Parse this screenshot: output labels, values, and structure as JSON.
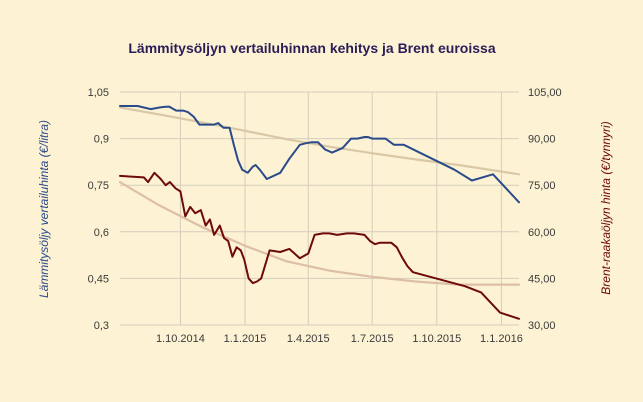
{
  "chart_data": {
    "type": "line",
    "title": "Lämmitysöljyn vertailuhinnan kehitys ja Brent euroissa",
    "ylabel_left": "Lämmitysöljy vertailuhinta (€/litra)",
    "ylabel_right": "Brent-raakaöljyn hinta (€/tynnyri)",
    "ylim_left": [
      0.3,
      1.05
    ],
    "ylim_right": [
      30,
      105
    ],
    "yticks_left": [
      "1,05",
      "0,9",
      "0,75",
      "0,6",
      "0,45",
      "0,3"
    ],
    "yticks_right": [
      "105,00",
      "90,00",
      "75,00",
      "60,00",
      "45,00",
      "30,00"
    ],
    "xticks": [
      {
        "label": "1.10.2014",
        "date": "2014-10-01"
      },
      {
        "label": "1.1.2015",
        "date": "2015-01-01"
      },
      {
        "label": "1.4.2015",
        "date": "2015-04-01"
      },
      {
        "label": "1.7.2015",
        "date": "2015-07-01"
      },
      {
        "label": "1.10.2015",
        "date": "2015-10-01"
      },
      {
        "label": "1.1.2016",
        "date": "2016-01-01"
      }
    ],
    "xlim": [
      "2014-07-07",
      "2016-01-26"
    ],
    "grid": true,
    "legend": "none",
    "series": [
      {
        "axis": "left",
        "color": "#2a4a8a",
        "x": [
          "2014-07-07",
          "2014-08-01",
          "2014-08-10",
          "2014-08-20",
          "2014-09-01",
          "2014-09-08",
          "2014-09-15",
          "2014-09-25",
          "2014-10-05",
          "2014-10-12",
          "2014-10-20",
          "2014-10-28",
          "2014-11-05",
          "2014-11-12",
          "2014-11-18",
          "2014-11-24",
          "2014-12-01",
          "2014-12-05",
          "2014-12-10",
          "2014-12-16",
          "2014-12-22",
          "2014-12-28",
          "2015-01-05",
          "2015-01-12",
          "2015-01-16",
          "2015-01-22",
          "2015-02-01",
          "2015-02-20",
          "2015-03-05",
          "2015-03-20",
          "2015-03-28",
          "2015-04-05",
          "2015-04-15",
          "2015-04-25",
          "2015-05-05",
          "2015-05-20",
          "2015-06-01",
          "2015-06-10",
          "2015-06-20",
          "2015-06-25",
          "2015-07-01",
          "2015-07-10",
          "2015-07-20",
          "2015-08-01",
          "2015-08-10",
          "2015-08-15",
          "2015-10-26",
          "2015-11-20",
          "2015-12-20",
          "2016-01-26"
        ],
        "values": [
          1.005,
          1.005,
          1.0,
          0.995,
          1.0,
          1.002,
          1.003,
          0.99,
          0.99,
          0.985,
          0.97,
          0.945,
          0.945,
          0.945,
          0.945,
          0.95,
          0.935,
          0.935,
          0.935,
          0.88,
          0.83,
          0.8,
          0.79,
          0.81,
          0.815,
          0.8,
          0.77,
          0.79,
          0.835,
          0.88,
          0.885,
          0.888,
          0.888,
          0.865,
          0.855,
          0.87,
          0.9,
          0.9,
          0.905,
          0.905,
          0.9,
          0.9,
          0.9,
          0.88,
          0.88,
          0.88,
          0.8,
          0.765,
          0.785,
          0.695
        ]
      },
      {
        "axis": "right",
        "color": "#6e0a0a",
        "x": [
          "2014-07-07",
          "2014-08-10",
          "2014-08-16",
          "2014-08-25",
          "2014-09-03",
          "2014-09-10",
          "2014-09-16",
          "2014-09-24",
          "2014-10-01",
          "2014-10-08",
          "2014-10-15",
          "2014-10-22",
          "2014-10-30",
          "2014-11-06",
          "2014-11-12",
          "2014-11-18",
          "2014-11-26",
          "2014-12-02",
          "2014-12-08",
          "2014-12-14",
          "2014-12-20",
          "2014-12-26",
          "2014-12-31",
          "2015-01-06",
          "2015-01-12",
          "2015-01-18",
          "2015-01-24",
          "2015-01-28",
          "2015-02-05",
          "2015-02-20",
          "2015-03-05",
          "2015-03-20",
          "2015-04-01",
          "2015-04-10",
          "2015-04-22",
          "2015-05-01",
          "2015-05-12",
          "2015-05-26",
          "2015-06-05",
          "2015-06-20",
          "2015-06-28",
          "2015-07-05",
          "2015-07-12",
          "2015-07-20",
          "2015-07-28",
          "2015-08-05",
          "2015-08-12",
          "2015-08-20",
          "2015-08-28",
          "2015-11-10",
          "2015-12-03",
          "2015-12-30",
          "2016-01-26"
        ],
        "values": [
          78,
          77.5,
          76,
          79,
          77,
          75,
          76,
          74,
          73,
          65,
          68,
          66,
          67,
          62,
          64,
          59,
          62,
          58,
          57,
          52,
          55,
          54,
          51,
          45,
          43.5,
          44,
          45,
          48,
          54,
          53.5,
          54.5,
          51.5,
          53,
          59,
          59.5,
          59.5,
          59,
          59.5,
          59.5,
          59,
          57,
          56,
          56.5,
          56.5,
          56.5,
          55,
          52,
          49,
          47,
          42.5,
          40.5,
          34,
          32
        ]
      },
      {
        "axis": "left",
        "color": "#d9c8a6",
        "x": [
          "2014-07-07",
          "2014-09-01",
          "2014-11-01",
          "2015-01-01",
          "2015-03-01",
          "2015-05-01",
          "2015-07-01",
          "2015-09-01",
          "2015-11-01",
          "2016-01-26"
        ],
        "values": [
          1.0,
          0.978,
          0.952,
          0.925,
          0.898,
          0.874,
          0.853,
          0.833,
          0.815,
          0.785
        ]
      },
      {
        "axis": "right",
        "color": "#ddbfa4",
        "x": [
          "2014-07-07",
          "2014-09-01",
          "2014-11-01",
          "2015-01-01",
          "2015-03-01",
          "2015-05-01",
          "2015-07-01",
          "2015-09-01",
          "2015-11-01",
          "2016-01-26"
        ],
        "values": [
          76,
          68.5,
          61.5,
          55.5,
          50.5,
          47.5,
          45.5,
          44,
          43,
          43
        ]
      }
    ]
  }
}
